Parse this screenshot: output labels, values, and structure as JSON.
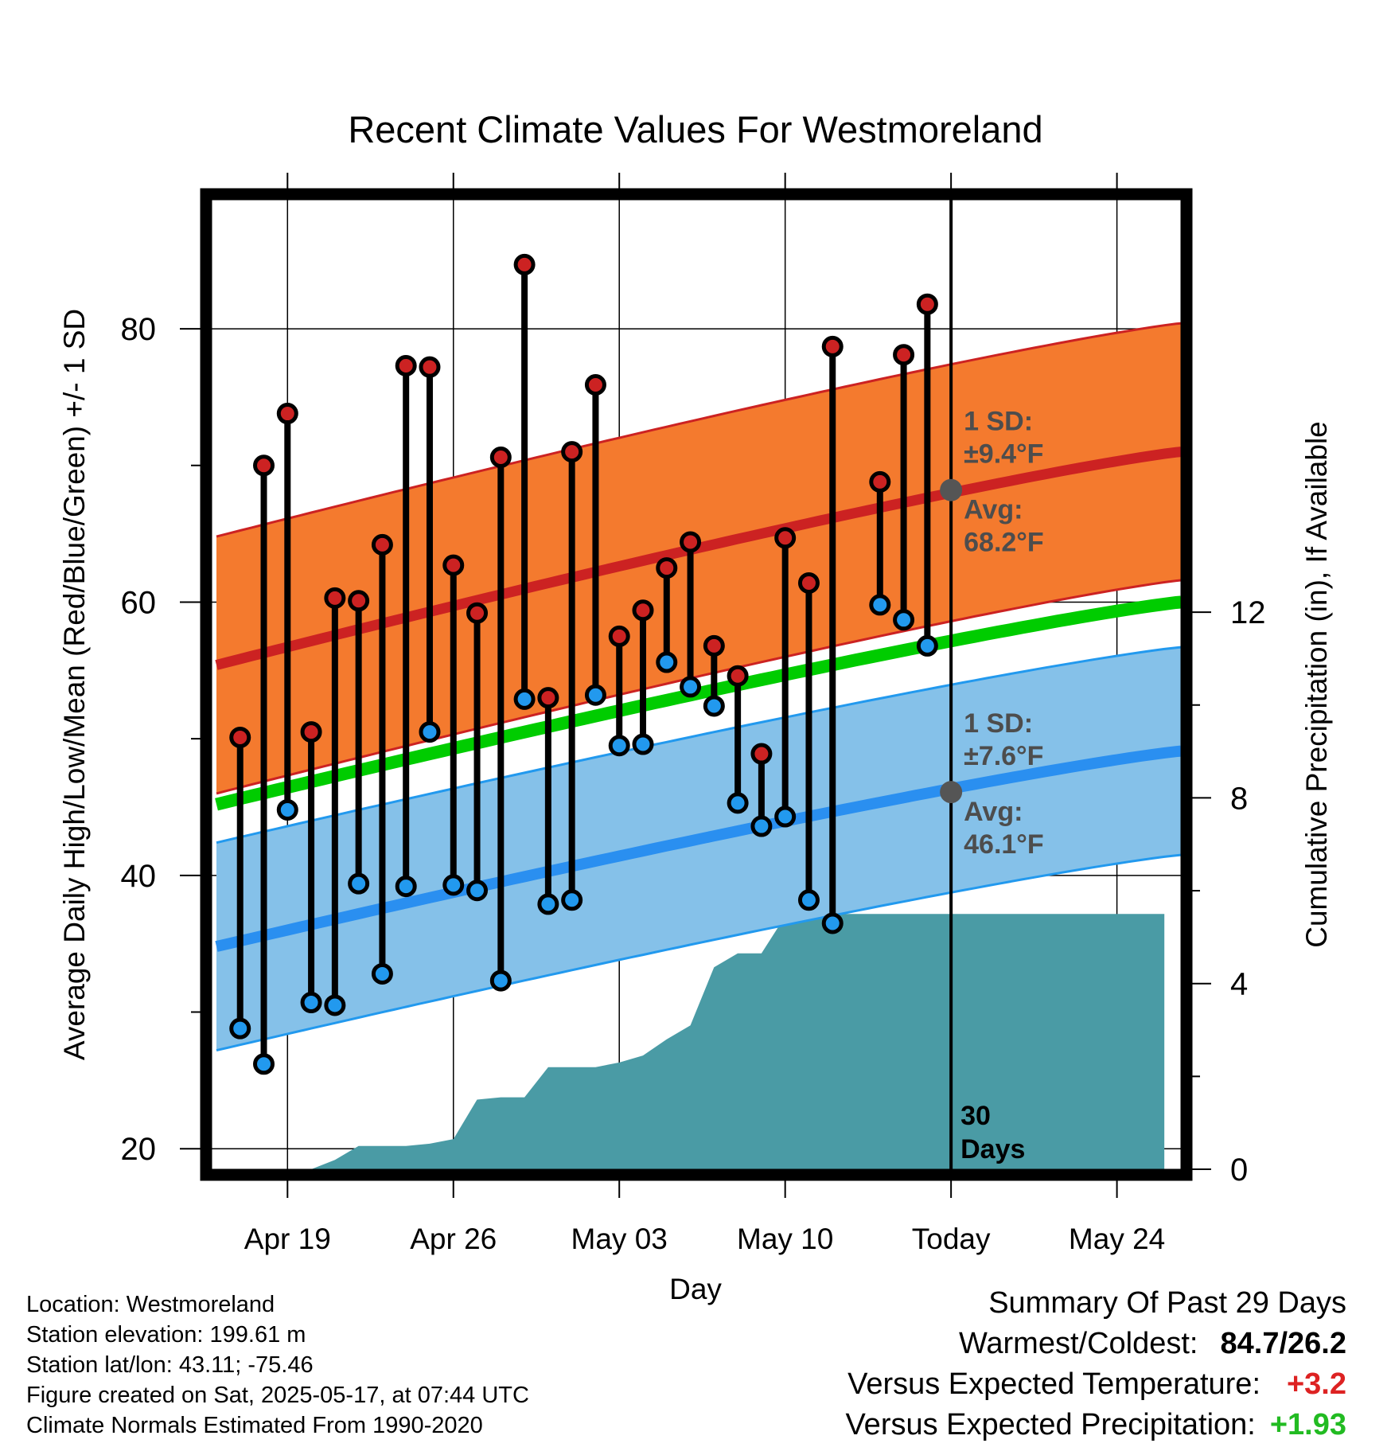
{
  "chart_data": {
    "type": "line",
    "title": "Recent Climate Values For Westmoreland",
    "xlabel": "Day",
    "ylabel": "Average Daily High/Low/Mean (Red/Blue/Green) +/- 1 SD",
    "y2label": "Cumulative Precipitation (in), If Available",
    "x_ticks": [
      "Apr 19",
      "Apr 26",
      "May 03",
      "May 10",
      "Today",
      "May 24"
    ],
    "x_tick_days": [
      3,
      10,
      17,
      24,
      31,
      38
    ],
    "y_ticks": [
      20,
      40,
      60,
      80
    ],
    "y2_ticks": [
      0,
      4,
      8,
      12
    ],
    "xlim": [
      -0.2,
      40.7
    ],
    "ylim": [
      18.5,
      89.5
    ],
    "y2lim": [
      0,
      20.9
    ],
    "today_day": 31,
    "today_label": "30 Days",
    "start_date": "2025-04-16",
    "normals": {
      "high_start": 55.4,
      "high_end": 71.0,
      "high_sd": 9.4,
      "low_start": 34.8,
      "low_end": 49.1,
      "low_sd": 7.6,
      "mean_start": 45.2,
      "mean_end": 60.0
    },
    "annotations": {
      "high_sd_label": "1 SD:",
      "high_sd_value": "±9.4°F",
      "high_avg_label": "Avg:",
      "high_avg_value": "68.2°F",
      "low_sd_label": "1 SD:",
      "low_sd_value": "±7.6°F",
      "low_avg_label": "Avg:",
      "low_avg_value": "46.1°F",
      "today_high_avg": 68.2,
      "today_low_avg": 46.1
    },
    "series": [
      {
        "name": "High",
        "color": "#cc2222",
        "days": [
          1,
          2,
          3,
          4,
          5,
          6,
          7,
          8,
          9,
          10,
          11,
          12,
          13,
          14,
          15,
          16,
          17,
          18,
          19,
          20,
          21,
          22,
          23,
          24,
          25,
          26,
          28,
          29,
          30
        ],
        "values": [
          50.1,
          70.0,
          73.8,
          50.5,
          60.3,
          60.1,
          64.2,
          77.3,
          77.2,
          62.7,
          59.2,
          70.6,
          84.7,
          53.0,
          71.0,
          75.9,
          57.5,
          59.4,
          62.5,
          64.4,
          56.8,
          54.6,
          48.9,
          64.7,
          61.4,
          78.7,
          68.8,
          78.1,
          81.8
        ]
      },
      {
        "name": "Low",
        "color": "#2299ee",
        "days": [
          1,
          2,
          3,
          4,
          5,
          6,
          7,
          8,
          9,
          10,
          11,
          12,
          13,
          14,
          15,
          16,
          17,
          18,
          19,
          20,
          21,
          22,
          23,
          24,
          25,
          26,
          28,
          29,
          30
        ],
        "values": [
          28.8,
          26.2,
          44.8,
          30.7,
          30.5,
          39.4,
          32.8,
          39.2,
          50.5,
          39.3,
          38.9,
          32.3,
          52.9,
          37.9,
          38.2,
          53.2,
          49.5,
          49.6,
          55.6,
          53.8,
          52.4,
          45.3,
          43.6,
          44.3,
          38.2,
          36.5,
          59.8,
          58.7,
          56.8
        ]
      },
      {
        "name": "Cumulative Precipitation",
        "color": "#4a9ba5",
        "days": [
          0,
          3,
          4,
          5,
          6,
          7,
          8,
          9,
          10,
          11,
          12,
          13,
          14,
          15,
          16,
          17,
          18,
          19,
          20,
          21,
          22,
          23,
          24,
          25,
          26,
          27,
          28,
          29,
          30,
          31,
          32,
          33,
          34,
          35,
          36,
          37,
          38,
          39,
          40
        ],
        "values": [
          0,
          0,
          0.0,
          0.2,
          0.5,
          0.5,
          0.5,
          0.55,
          0.65,
          1.5,
          1.55,
          1.55,
          2.2,
          2.2,
          2.2,
          2.3,
          2.45,
          2.8,
          3.1,
          4.35,
          4.65,
          4.65,
          5.45,
          5.5,
          5.5,
          5.5,
          5.5,
          5.5,
          5.5,
          5.5,
          5.5,
          5.5,
          5.5,
          5.5,
          5.5,
          5.5,
          5.5,
          5.5,
          5.5
        ]
      }
    ]
  },
  "info": {
    "location": "Location: Westmoreland",
    "elevation": "Station elevation: 199.61 m",
    "latlon": "Station lat/lon: 43.11; -75.46",
    "created": "Figure created on Sat, 2025-05-17, at 07:44 UTC",
    "normals": "Climate Normals Estimated From 1990-2020"
  },
  "summary": {
    "title": "Summary Of Past 29 Days",
    "warmest_coldest_label": "Warmest/Coldest:",
    "warmest": "84.7",
    "coldest": "26.2",
    "temp_label": "Versus Expected Temperature:",
    "temp_value": "+3.2",
    "temp_color": "#dd2222",
    "precip_label": "Versus Expected Precipitation:",
    "precip_value": "+1.93",
    "precip_color": "#22bb22"
  }
}
